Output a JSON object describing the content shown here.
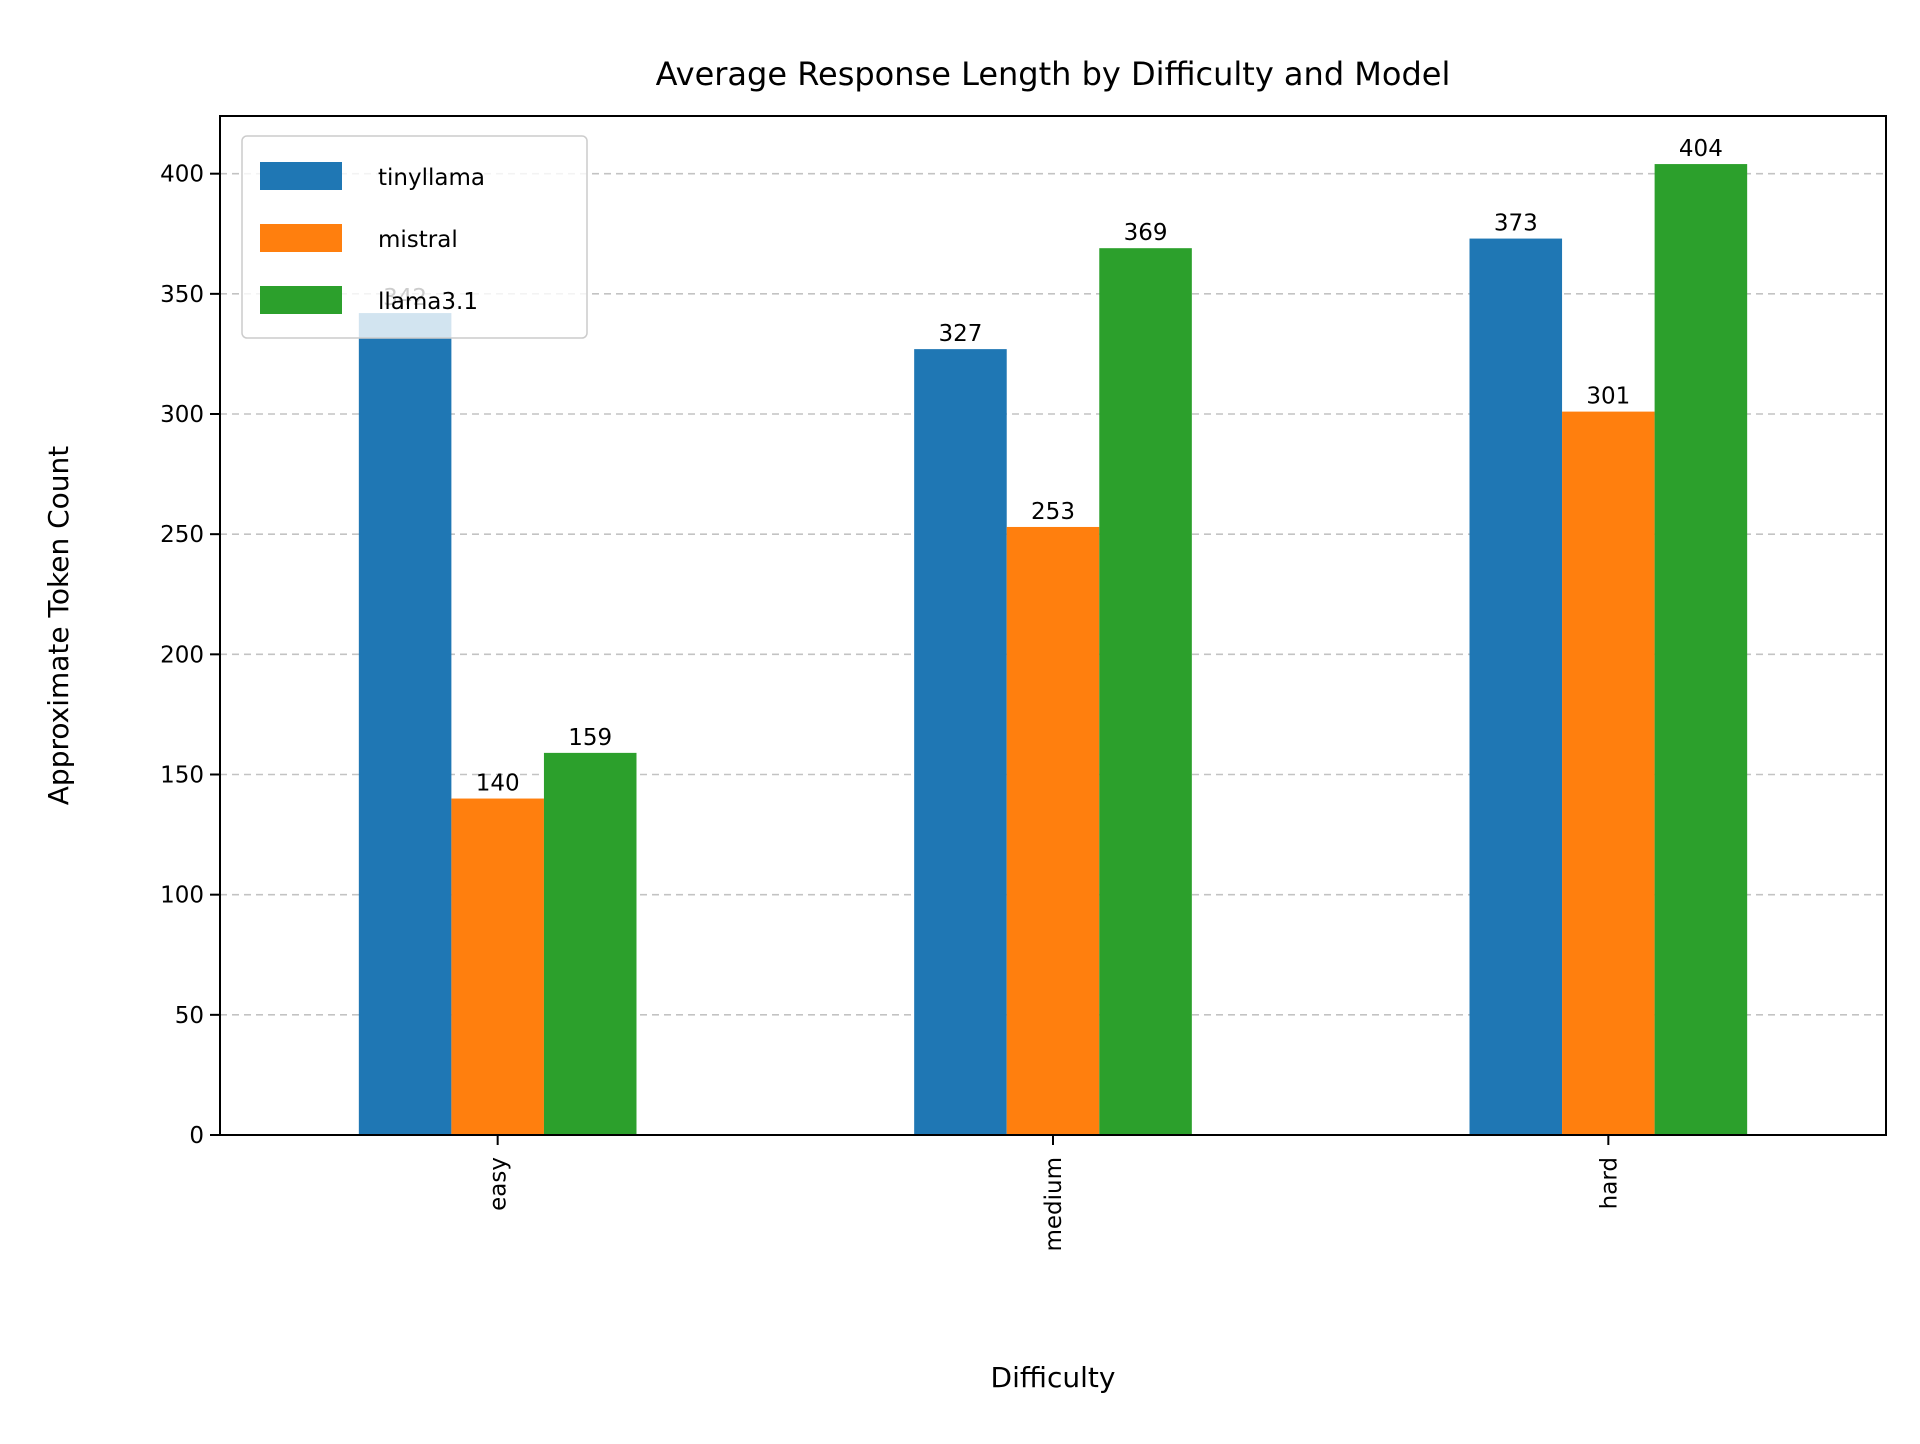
{
  "chart_data": {
    "type": "bar",
    "title": "Average Response Length by Difficulty and Model",
    "xlabel": "Difficulty",
    "ylabel": "Approximate Token Count",
    "categories": [
      "easy",
      "medium",
      "hard"
    ],
    "series": [
      {
        "name": "tinyllama",
        "color": "#1f77b4",
        "values": [
          342,
          327,
          373
        ]
      },
      {
        "name": "mistral",
        "color": "#ff7f0e",
        "values": [
          140,
          253,
          301
        ]
      },
      {
        "name": "llama3.1",
        "color": "#2ca02c",
        "values": [
          159,
          369,
          404
        ]
      }
    ],
    "ylim": [
      0,
      424
    ],
    "yticks": [
      0,
      50,
      100,
      150,
      200,
      250,
      300,
      350,
      400
    ],
    "grid": "y-dashed",
    "legend_position": "top-left",
    "x_tick_rotation": 90
  }
}
